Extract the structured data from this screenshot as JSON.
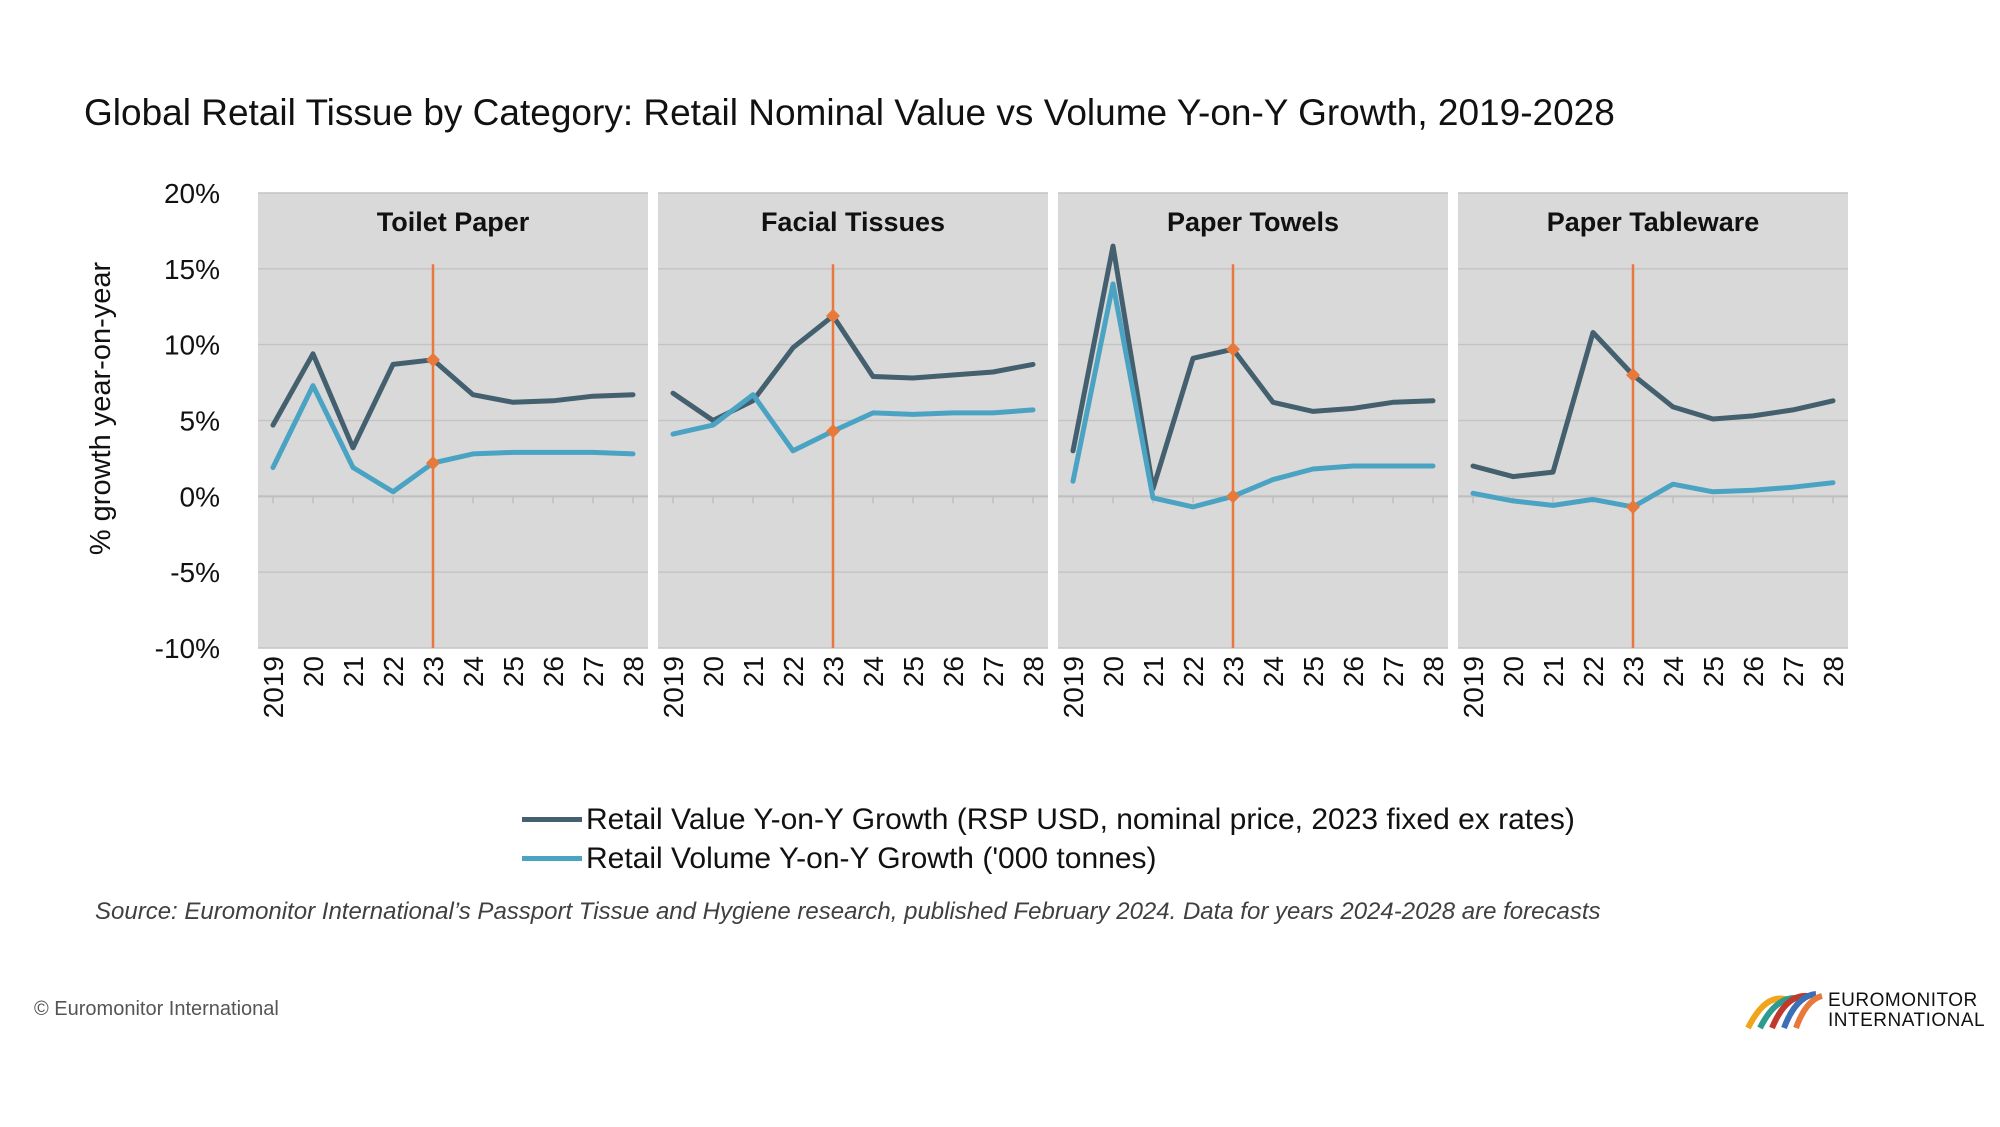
{
  "title": "Global Retail Tissue by Category: Retail Nominal Value vs Volume Y-on-Y Growth, 2019-2028",
  "source": "Source: Euromonitor International’s Passport Tissue and Hygiene research, published February 2024. Data for years 2024-2028 are forecasts",
  "copyright": "© Euromonitor International",
  "logo": {
    "line1": "EUROMONITOR",
    "line2": "INTERNATIONAL"
  },
  "colors": {
    "value_series": "#44606F",
    "volume_series": "#4BA3C3",
    "marker_line": "#E8793A",
    "panel_bg": "#D9D9D9"
  },
  "chart_data": {
    "type": "line",
    "ylabel": "% growth year-on-year",
    "ylim": [
      -10,
      20
    ],
    "yticks": [
      "20%",
      "15%",
      "10%",
      "5%",
      "0%",
      "-5%",
      "-10%"
    ],
    "x_labels": [
      "2019",
      "20",
      "21",
      "22",
      "23",
      "24",
      "25",
      "26",
      "27",
      "28"
    ],
    "highlight_year": "23",
    "legend": [
      "Retail Value Y-on-Y Growth (RSP USD, nominal price, 2023 fixed ex rates)",
      "Retail Volume Y-on-Y Growth ('000 tonnes)"
    ],
    "panels": [
      {
        "title": "Toilet Paper",
        "value": [
          4.7,
          9.4,
          3.2,
          8.7,
          9.0,
          6.7,
          6.2,
          6.3,
          6.6,
          6.7
        ],
        "volume": [
          1.9,
          7.3,
          1.9,
          0.3,
          2.2,
          2.8,
          2.9,
          2.9,
          2.9,
          2.8
        ]
      },
      {
        "title": "Facial Tissues",
        "value": [
          6.8,
          5.0,
          6.3,
          9.8,
          11.9,
          7.9,
          7.8,
          8.0,
          8.2,
          8.7
        ],
        "volume": [
          4.1,
          4.7,
          6.7,
          3.0,
          4.3,
          5.5,
          5.4,
          5.5,
          5.5,
          5.7
        ]
      },
      {
        "title": "Paper Towels",
        "value": [
          3.0,
          16.5,
          0.5,
          9.1,
          9.7,
          6.2,
          5.6,
          5.8,
          6.2,
          6.3
        ],
        "volume": [
          1.0,
          14.0,
          -0.1,
          -0.7,
          0.0,
          1.1,
          1.8,
          2.0,
          2.0,
          2.0
        ]
      },
      {
        "title": "Paper Tableware",
        "value": [
          2.0,
          1.3,
          1.6,
          10.8,
          8.0,
          5.9,
          5.1,
          5.3,
          5.7,
          6.3
        ],
        "volume": [
          0.2,
          -0.3,
          -0.6,
          -0.2,
          -0.7,
          0.8,
          0.3,
          0.4,
          0.6,
          0.9
        ]
      }
    ]
  }
}
